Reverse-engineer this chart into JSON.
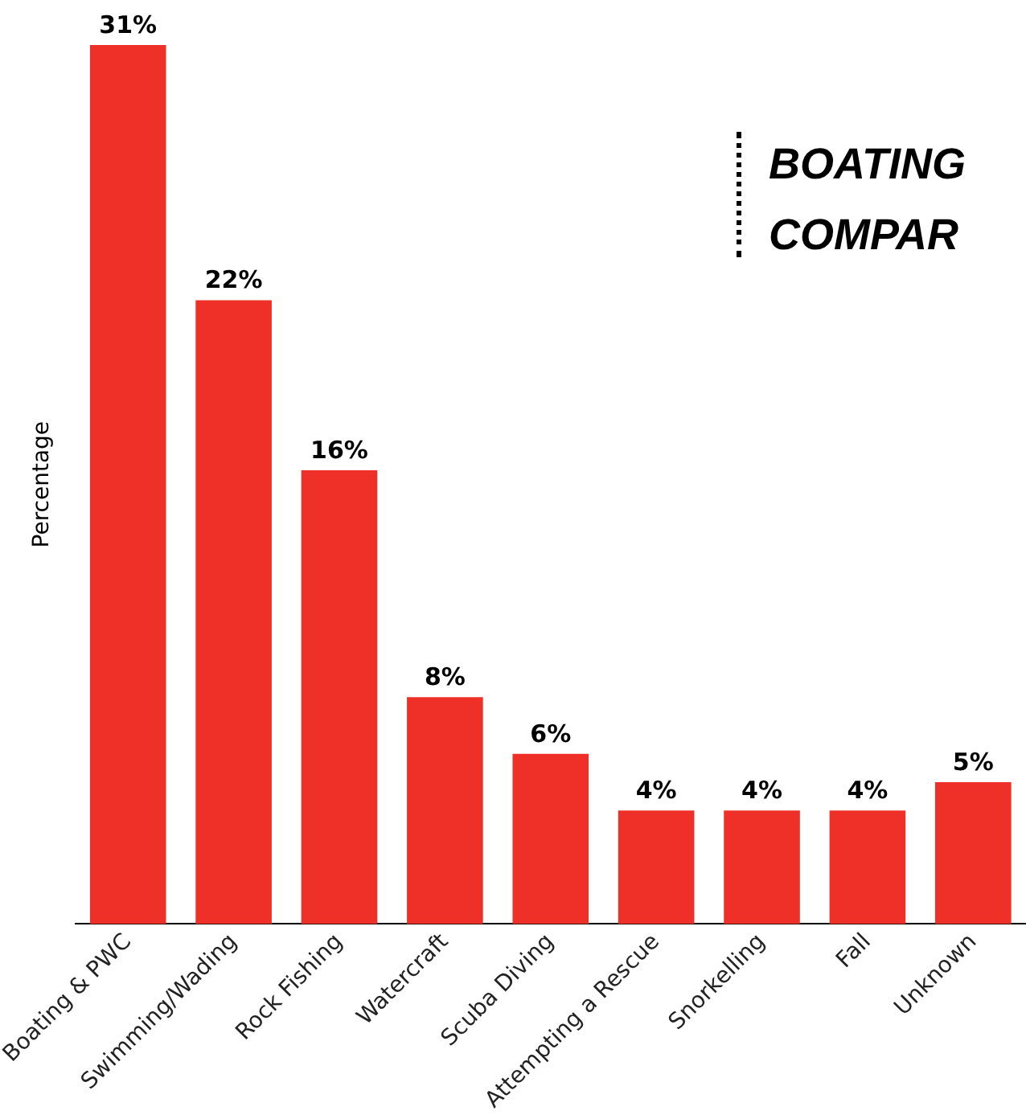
{
  "chart_data": {
    "type": "bar",
    "title": "BOATING COMPAR",
    "ylabel": "Percentage",
    "categories": [
      "Boating & PWC",
      "Swimming/Wading",
      "Rock Fishing",
      "Watercraft",
      "Scuba Diving",
      "Attempting a Rescue",
      "Snorkelling",
      "Fall",
      "Unknown"
    ],
    "values": [
      31,
      22,
      16,
      8,
      6,
      4,
      4,
      4,
      5
    ],
    "value_labels": [
      "31%",
      "22%",
      "16%",
      "8%",
      "6%",
      "4%",
      "4%",
      "4%",
      "5%"
    ],
    "color": "#ef3028",
    "grid": false,
    "legend": false
  }
}
